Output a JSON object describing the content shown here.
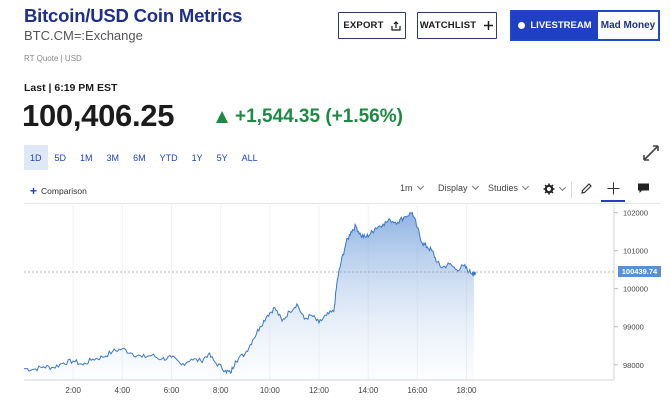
{
  "header": {
    "title": "Bitcoin/USD Coin Metrics",
    "symbol": "BTC.CM=:Exchange",
    "quote_source": "RT Quote | USD",
    "export_label": "EXPORT",
    "watchlist_label": "WATCHLIST",
    "livestream_label": "LIVESTREAM",
    "show_label": "Mad Money"
  },
  "quote": {
    "last_label": "Last | 6:19 PM EST",
    "price": "100,406.25",
    "change": "+1,544.35 (+1.56%)",
    "direction": "up",
    "up_color": "#1d8a43"
  },
  "ranges": [
    "1D",
    "5D",
    "1M",
    "3M",
    "6M",
    "YTD",
    "1Y",
    "5Y",
    "ALL"
  ],
  "selected_range": "1D",
  "toolbar": {
    "comparison_label": "Comparison",
    "interval_label": "1m",
    "display_label": "Display",
    "studies_label": "Studies"
  },
  "chart_data": {
    "type": "area",
    "x_tick_labels": [
      "2:00",
      "4:00",
      "6:00",
      "8:00",
      "10:00",
      "12:00",
      "14:00",
      "16:00",
      "18:00"
    ],
    "y_tick_labels": [
      "102000",
      "101000",
      "100000",
      "99000",
      "98000"
    ],
    "ylim": [
      97600,
      102200
    ],
    "xlim_hours": [
      0,
      24
    ],
    "current_price_label": "100439.74",
    "current_price": 100439.74,
    "line_color": "#3a78c9",
    "points": [
      [
        0.0,
        97900
      ],
      [
        0.4,
        97880
      ],
      [
        0.8,
        97950
      ],
      [
        1.2,
        97930
      ],
      [
        1.6,
        98050
      ],
      [
        2.0,
        98100
      ],
      [
        2.4,
        98000
      ],
      [
        2.8,
        98150
      ],
      [
        3.2,
        98200
      ],
      [
        3.6,
        98350
      ],
      [
        4.0,
        98420
      ],
      [
        4.4,
        98300
      ],
      [
        4.8,
        98200
      ],
      [
        5.2,
        98250
      ],
      [
        5.6,
        98150
      ],
      [
        6.0,
        98200
      ],
      [
        6.4,
        98000
      ],
      [
        6.8,
        98150
      ],
      [
        7.2,
        98100
      ],
      [
        7.5,
        98280
      ],
      [
        7.8,
        98050
      ],
      [
        8.2,
        97850
      ],
      [
        8.4,
        97780
      ],
      [
        8.6,
        98100
      ],
      [
        9.0,
        98300
      ],
      [
        9.3,
        98650
      ],
      [
        9.6,
        99000
      ],
      [
        9.9,
        99300
      ],
      [
        10.2,
        99500
      ],
      [
        10.5,
        99150
      ],
      [
        10.8,
        99400
      ],
      [
        11.1,
        99600
      ],
      [
        11.4,
        99200
      ],
      [
        11.7,
        99300
      ],
      [
        12.0,
        99100
      ],
      [
        12.3,
        99300
      ],
      [
        12.6,
        99400
      ],
      [
        12.75,
        100250
      ],
      [
        12.9,
        100700
      ],
      [
        13.1,
        101200
      ],
      [
        13.3,
        101500
      ],
      [
        13.5,
        101650
      ],
      [
        13.7,
        101400
      ],
      [
        13.9,
        101350
      ],
      [
        14.1,
        101450
      ],
      [
        14.3,
        101600
      ],
      [
        14.6,
        101700
      ],
      [
        14.9,
        101800
      ],
      [
        15.2,
        101750
      ],
      [
        15.5,
        101900
      ],
      [
        15.8,
        102000
      ],
      [
        16.0,
        101600
      ],
      [
        16.2,
        101200
      ],
      [
        16.4,
        101100
      ],
      [
        16.6,
        101000
      ],
      [
        16.8,
        100700
      ],
      [
        17.0,
        100550
      ],
      [
        17.3,
        100650
      ],
      [
        17.6,
        100500
      ],
      [
        17.9,
        100600
      ],
      [
        18.1,
        100450
      ],
      [
        18.3,
        100400
      ]
    ]
  }
}
